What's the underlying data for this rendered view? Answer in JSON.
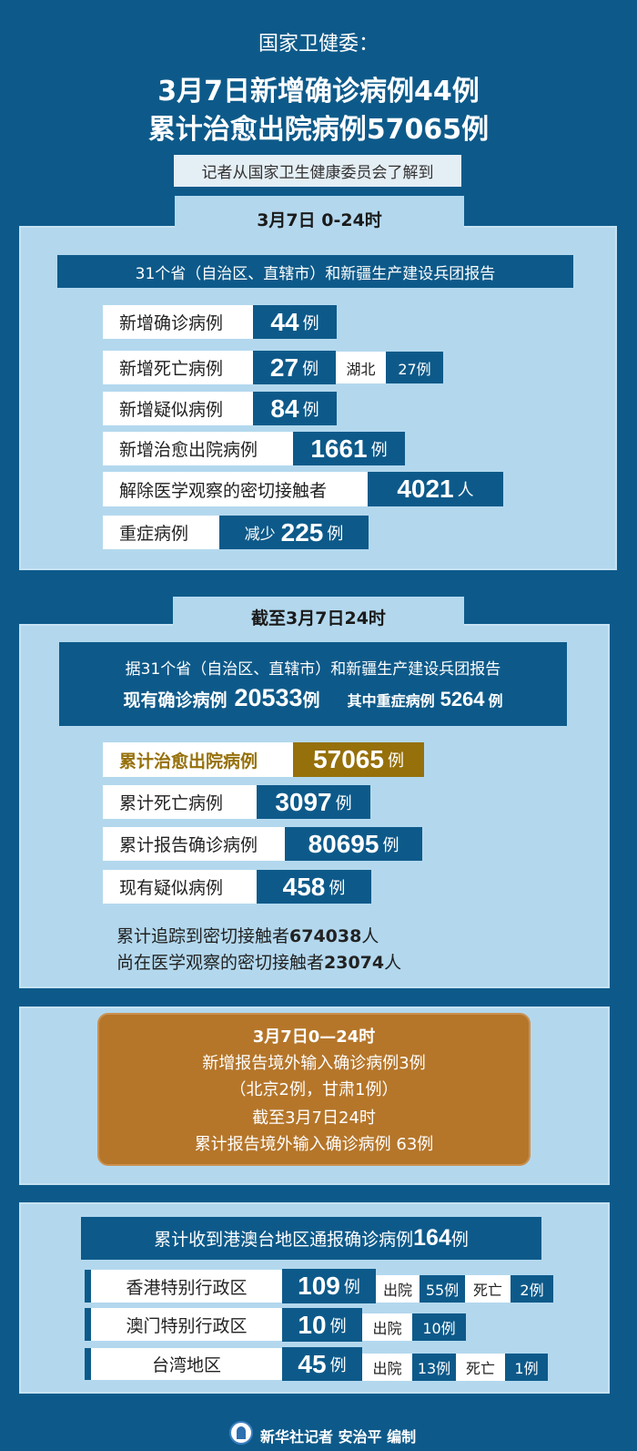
{
  "header": {
    "source": "国家卫健委：",
    "title_line1": "3月7日新增确诊病例44例",
    "title_line2": "累计治愈出院病例57065例",
    "subtitle": "记者从国家卫生健康委员会了解到"
  },
  "section1": {
    "tab": "3月7日 0-24时",
    "banner": "31个省（自治区、直辖市）和新疆生产建设兵团报告",
    "rows": [
      {
        "label": "新增确诊病例",
        "value": "44",
        "unit": "例"
      },
      {
        "label": "新增死亡病例",
        "value": "27",
        "unit": "例",
        "extra_label": "湖北",
        "extra_value": "27例"
      },
      {
        "label": "新增疑似病例",
        "value": "84",
        "unit": "例"
      },
      {
        "label": "新增治愈出院病例",
        "value": "1661",
        "unit": "例"
      },
      {
        "label": "解除医学观察的密切接触者",
        "value": "4021",
        "unit": "人"
      },
      {
        "label": "重症病例",
        "prefix": "减少",
        "value": "225",
        "unit": "例"
      }
    ]
  },
  "section2": {
    "tab": "截至3月7日24时",
    "banner": "据31个省（自治区、直辖市）和新疆生产建设兵团报告",
    "current_label": "现有确诊病例",
    "current_value": "20533",
    "current_unit": "例",
    "severe_label": "其中重症病例",
    "severe_value": "5264",
    "severe_unit": "例",
    "rows": [
      {
        "label": "累计治愈出院病例",
        "value": "57065",
        "unit": "例"
      },
      {
        "label": "累计死亡病例",
        "value": "3097",
        "unit": "例"
      },
      {
        "label": "累计报告确诊病例",
        "value": "80695",
        "unit": "例"
      },
      {
        "label": "现有疑似病例",
        "value": "458",
        "unit": "例"
      }
    ],
    "line1_text": "累计追踪到密切接触者",
    "line1_value": "674038",
    "line1_unit": "人",
    "line2_text": "尚在医学观察的密切接触者",
    "line2_value": "23074",
    "line2_unit": "人"
  },
  "section3": {
    "lines": [
      "3月7日0—24时",
      "新增报告境外输入确诊病例3例",
      "（北京2例，甘肃1例）",
      "截至3月7日24时",
      "累计报告境外输入确诊病例 63例"
    ]
  },
  "section4": {
    "banner_text": "累计收到港澳台地区通报确诊病例",
    "banner_value": "164",
    "banner_unit": "例",
    "rows": [
      {
        "label": "香港特别行政区",
        "value": "109",
        "unit": "例",
        "discharged_label": "出院",
        "discharged": "55例",
        "death_label": "死亡",
        "death": "2例"
      },
      {
        "label": "澳门特别行政区",
        "value": "10",
        "unit": "例",
        "discharged_label": "出院",
        "discharged": "10例"
      },
      {
        "label": "台湾地区",
        "value": "45",
        "unit": "例",
        "discharged_label": "出院",
        "discharged": "13例",
        "death_label": "死亡",
        "death": "1例"
      }
    ]
  },
  "footer": {
    "credit": "新华社记者 安治平 编制",
    "logo": "xinhua-logo-icon"
  },
  "colors": {
    "background": "#0d5a8a",
    "panel": "#b3d8ee",
    "gold": "#96700a",
    "orange": "#b5762a"
  }
}
